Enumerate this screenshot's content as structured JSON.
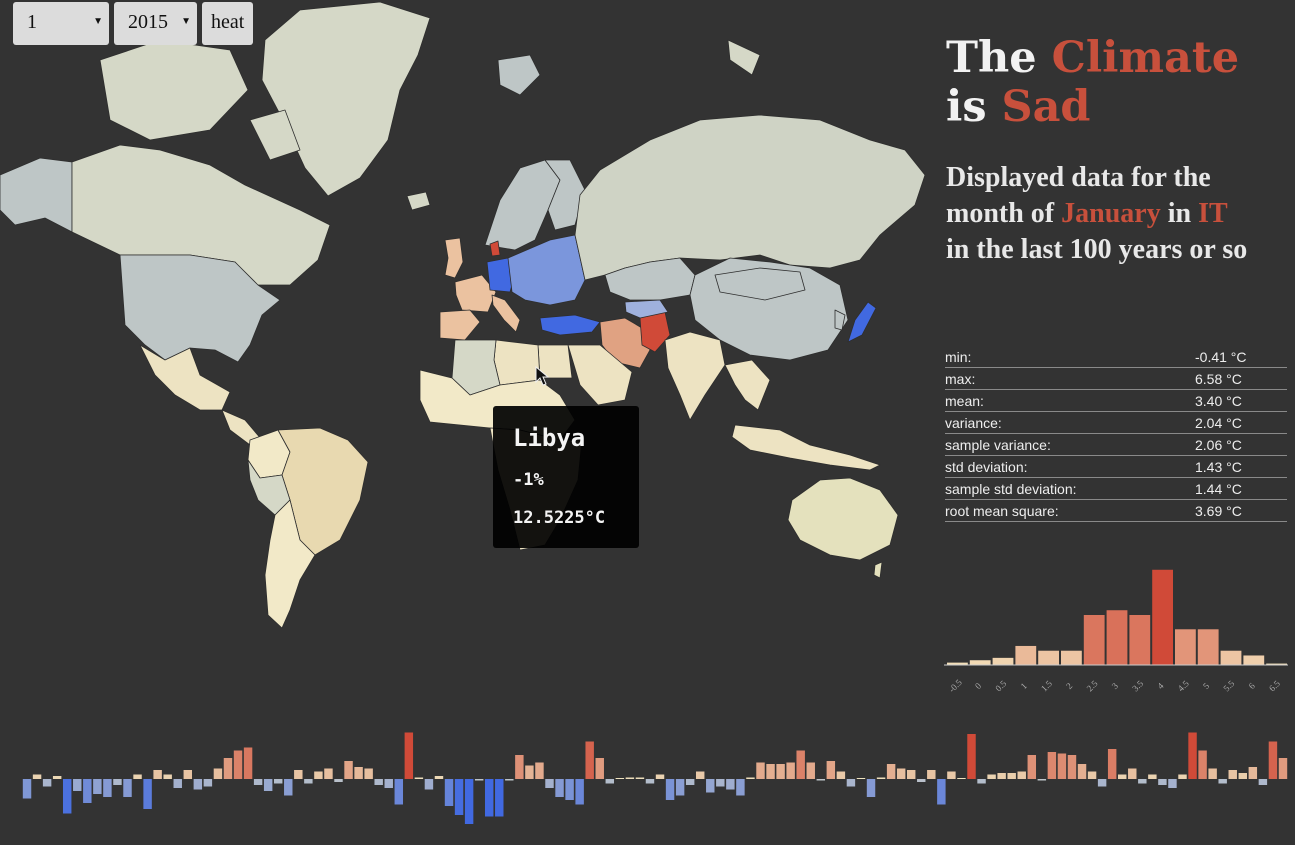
{
  "controls": {
    "month": "1",
    "year": "2015",
    "mode_button": "heat"
  },
  "title": {
    "part1": "The ",
    "accent1": "Climate",
    "part2": " is ",
    "accent2": "Sad"
  },
  "subtitle": {
    "line1_a": "Displayed data for the",
    "line2_a": "month of ",
    "month": "January",
    "line2_b": " in ",
    "country": "IT",
    "line3": "in the last 100 years or so"
  },
  "stats": [
    {
      "label": "min:",
      "value": "-0.41 °C"
    },
    {
      "label": "max:",
      "value": "6.58 °C"
    },
    {
      "label": "mean:",
      "value": "3.40 °C"
    },
    {
      "label": "variance:",
      "value": "2.04 °C"
    },
    {
      "label": "sample variance:",
      "value": "2.06 °C"
    },
    {
      "label": "std deviation:",
      "value": "1.43 °C"
    },
    {
      "label": "sample std deviation:",
      "value": "1.44 °C"
    },
    {
      "label": "root mean square:",
      "value": "3.69 °C"
    }
  ],
  "tooltip": {
    "country": "Libya",
    "change": "-1%",
    "temperature": "12.5225°C"
  },
  "colors": {
    "accent": "#c8503c",
    "background": "#333333",
    "cold": "#4169e1",
    "warm": "#d04a38"
  },
  "chart_data": [
    {
      "type": "bar",
      "categories": [
        "-0.5",
        "0",
        "0.5",
        "1",
        "1.5",
        "2",
        "2.5",
        "3",
        "3.5",
        "4",
        "4.5",
        "5",
        "5.5",
        "6",
        "6.5"
      ],
      "values": [
        0.5,
        1,
        1.5,
        4,
        3,
        3,
        10.5,
        11.5,
        10.5,
        20,
        7.5,
        7.5,
        3,
        2,
        0.3
      ],
      "ylim": [
        0,
        21
      ]
    },
    {
      "type": "bar",
      "values": [
        -1.3,
        0.3,
        -0.5,
        0.2,
        -2.3,
        -0.8,
        -1.6,
        -1,
        -1.2,
        -0.4,
        -1.2,
        0.3,
        -2,
        0.6,
        0.3,
        -0.6,
        0.6,
        -0.7,
        -0.5,
        0.7,
        1.4,
        1.9,
        2.1,
        -0.4,
        -0.8,
        -0.3,
        -1.1,
        0.6,
        -0.3,
        0.5,
        0.7,
        -0.2,
        1.2,
        0.8,
        0.7,
        -0.4,
        -0.6,
        -1.7,
        3.1,
        0.1,
        -0.7,
        0.2,
        -1.8,
        -2.4,
        -3,
        -0.1,
        -2.5,
        -2.5,
        -0.1,
        1.6,
        0.9,
        1.1,
        -0.6,
        -1.2,
        -1.4,
        -1.7,
        2.5,
        1.4,
        -0.3,
        0,
        0.1,
        0.1,
        -0.3,
        0.3,
        -1.4,
        -1.1,
        -0.4,
        0.5,
        -0.9,
        -0.5,
        -0.7,
        -1.1,
        0.1,
        1.1,
        1,
        1,
        1.1,
        1.9,
        1.1,
        -0.1,
        1.2,
        0.5,
        -0.5,
        0,
        -1.2,
        0.1,
        1,
        0.7,
        0.6,
        -0.2,
        0.6,
        -1.7,
        0.5,
        0,
        3,
        -0.3,
        0.3,
        0.4,
        0.4,
        0.5,
        1.6,
        -0.1,
        1.8,
        1.7,
        1.6,
        1,
        0.5,
        -0.5,
        2,
        0.3,
        0.7,
        -0.3,
        0.3,
        -0.4,
        -0.6,
        0.3,
        3.1,
        1.9,
        0.7,
        -0.3,
        0.6,
        0.4,
        0.8,
        -0.4,
        2.5,
        1.4
      ]
    }
  ]
}
